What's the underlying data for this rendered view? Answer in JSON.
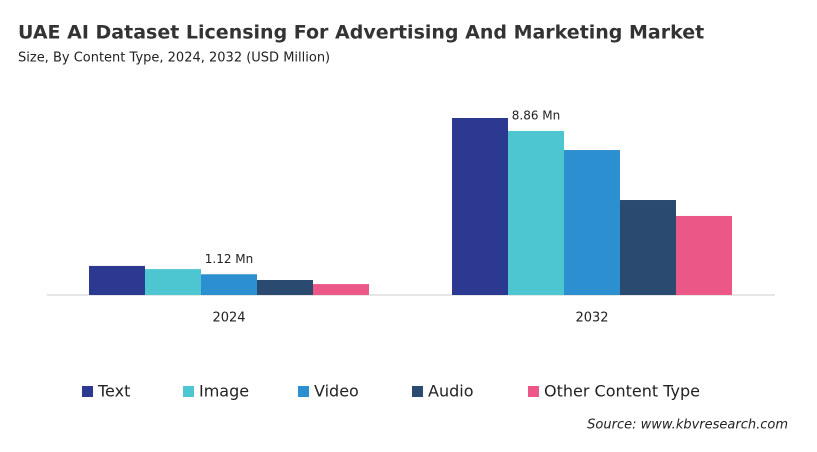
{
  "chart_data": {
    "type": "bar",
    "title": "UAE AI Dataset Licensing For Advertising And Marketing Market",
    "subtitle": "Size, By Content Type, 2024, 2032 (USD Million)",
    "categories": [
      "2024",
      "2032"
    ],
    "series": [
      {
        "name": "Text",
        "color": "#2b3990",
        "values": [
          1.57,
          9.56
        ]
      },
      {
        "name": "Image",
        "color": "#4dc6d2",
        "values": [
          1.4,
          8.86
        ],
        "value_labels": [
          null,
          "8.86 Mn"
        ]
      },
      {
        "name": "Video",
        "color": "#2c8fcf",
        "values": [
          1.12,
          7.83
        ],
        "value_labels": [
          "1.12 Mn",
          null
        ]
      },
      {
        "name": "Audio",
        "color": "#2b4a6f",
        "values": [
          0.81,
          5.13
        ]
      },
      {
        "name": "Other Content Type",
        "color": "#eb5787",
        "values": [
          0.59,
          4.27
        ]
      }
    ],
    "source": "Source: www.kbvresearch.com"
  }
}
